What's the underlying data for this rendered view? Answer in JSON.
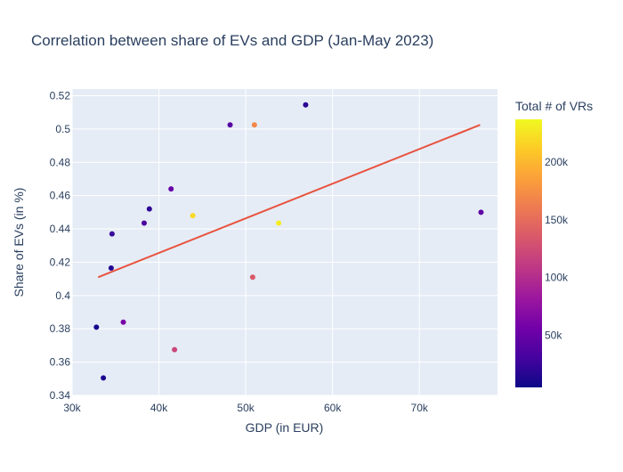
{
  "chart_data": {
    "type": "scatter",
    "title": "Correlation between share of EVs and GDP (Jan-May 2023)",
    "xlabel": "GDP (in EUR)",
    "ylabel": "Share of EVs (in %)",
    "xlim": [
      30000,
      79000
    ],
    "ylim": [
      0.34,
      0.524
    ],
    "x_ticks": [
      30000,
      40000,
      50000,
      60000,
      70000
    ],
    "x_tick_labels": [
      "30k",
      "40k",
      "50k",
      "60k",
      "70k"
    ],
    "y_ticks": [
      0.34,
      0.36,
      0.38,
      0.4,
      0.42,
      0.44,
      0.46,
      0.48,
      0.5,
      0.52
    ],
    "y_tick_labels": [
      "0.34",
      "0.36",
      "0.38",
      "0.4",
      "0.42",
      "0.44",
      "0.46",
      "0.48",
      "0.5",
      "0.52"
    ],
    "grid": true,
    "colorbar": {
      "title": "Total # of VRs",
      "min": 5000,
      "max": 237000,
      "ticks": [
        50000,
        100000,
        150000,
        200000
      ],
      "tick_labels": [
        "50k",
        "100k",
        "150k",
        "200k"
      ],
      "colorscale": [
        "#0d0887",
        "#46039f",
        "#7201a8",
        "#9c179e",
        "#bd3786",
        "#d8576b",
        "#ed7953",
        "#fb9f3a",
        "#fdca26",
        "#f0f921"
      ]
    },
    "points": [
      {
        "x": 32800,
        "y": 0.381,
        "vrs": 10000
      },
      {
        "x": 33600,
        "y": 0.3505,
        "vrs": 12000
      },
      {
        "x": 34500,
        "y": 0.4165,
        "vrs": 15000
      },
      {
        "x": 34600,
        "y": 0.437,
        "vrs": 25000
      },
      {
        "x": 35900,
        "y": 0.384,
        "vrs": 60000
      },
      {
        "x": 38300,
        "y": 0.4435,
        "vrs": 35000
      },
      {
        "x": 38900,
        "y": 0.452,
        "vrs": 20000
      },
      {
        "x": 41400,
        "y": 0.464,
        "vrs": 50000
      },
      {
        "x": 41800,
        "y": 0.3675,
        "vrs": 120000
      },
      {
        "x": 43900,
        "y": 0.448,
        "vrs": 220000
      },
      {
        "x": 48200,
        "y": 0.5025,
        "vrs": 40000
      },
      {
        "x": 50800,
        "y": 0.411,
        "vrs": 135000
      },
      {
        "x": 51000,
        "y": 0.5025,
        "vrs": 170000
      },
      {
        "x": 53800,
        "y": 0.4435,
        "vrs": 230000
      },
      {
        "x": 56900,
        "y": 0.5145,
        "vrs": 18000
      },
      {
        "x": 77100,
        "y": 0.45,
        "vrs": 45000
      }
    ],
    "trendline": {
      "color": "#e8533f",
      "x": [
        33000,
        77000
      ],
      "y": [
        0.411,
        0.5025
      ]
    }
  }
}
